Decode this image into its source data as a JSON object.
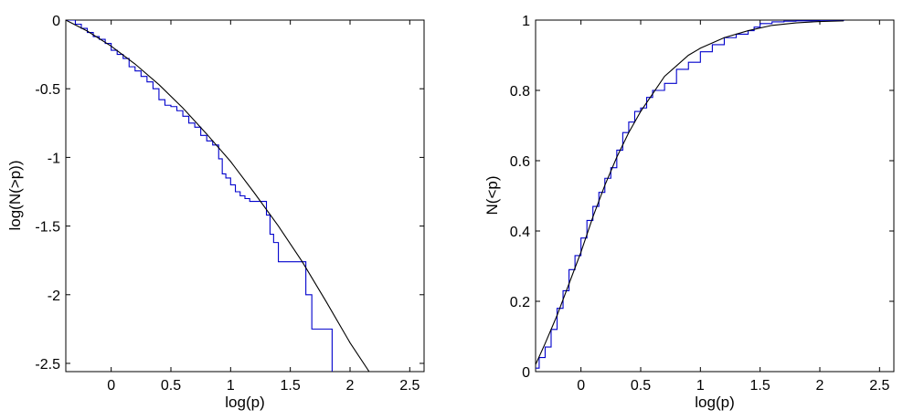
{
  "chart_data": [
    {
      "type": "line",
      "xlabel": "log(p)",
      "ylabel": "log(N(>p))",
      "xlim": [
        -0.38,
        2.62
      ],
      "ylim": [
        -2.56,
        0
      ],
      "xticks": [
        0,
        0.5,
        1,
        1.5,
        2,
        2.5
      ],
      "xtick_labels": [
        "0",
        "0.5",
        "1",
        "1.5",
        "2",
        "2.5"
      ],
      "yticks": [
        -2.5,
        -2,
        -1.5,
        -1,
        -0.5,
        0
      ],
      "ytick_labels": [
        "-2.5",
        "-2",
        "-1.5",
        "-1",
        "-0.5",
        "0"
      ],
      "grid": false,
      "series": [
        {
          "color": "#0000cc",
          "style": "step",
          "x": [
            -0.38,
            -0.3,
            -0.25,
            -0.2,
            -0.15,
            -0.1,
            -0.05,
            0.0,
            0.05,
            0.1,
            0.15,
            0.2,
            0.25,
            0.3,
            0.35,
            0.4,
            0.45,
            0.5,
            0.55,
            0.6,
            0.65,
            0.7,
            0.75,
            0.8,
            0.85,
            0.9,
            0.93,
            0.96,
            1.0,
            1.04,
            1.08,
            1.12,
            1.16,
            1.2,
            1.25,
            1.3,
            1.33,
            1.36,
            1.4,
            1.5,
            1.58,
            1.63,
            1.68,
            1.78,
            1.85,
            1.85
          ],
          "y": [
            0.0,
            -0.03,
            -0.06,
            -0.09,
            -0.12,
            -0.14,
            -0.17,
            -0.22,
            -0.25,
            -0.28,
            -0.34,
            -0.37,
            -0.41,
            -0.45,
            -0.5,
            -0.58,
            -0.62,
            -0.63,
            -0.66,
            -0.7,
            -0.75,
            -0.78,
            -0.84,
            -0.88,
            -0.91,
            -1.01,
            -1.12,
            -1.15,
            -1.2,
            -1.25,
            -1.28,
            -1.3,
            -1.32,
            -1.32,
            -1.32,
            -1.42,
            -1.56,
            -1.62,
            -1.76,
            -1.76,
            -1.76,
            -2.0,
            -2.25,
            -2.25,
            -2.25,
            -2.56
          ]
        },
        {
          "color": "#000000",
          "style": "line",
          "x": [
            -0.38,
            -0.2,
            0.0,
            0.2,
            0.4,
            0.6,
            0.8,
            1.0,
            1.2,
            1.4,
            1.6,
            1.8,
            2.0,
            2.16
          ],
          "y": [
            0.0,
            -0.08,
            -0.19,
            -0.32,
            -0.47,
            -0.64,
            -0.83,
            -1.03,
            -1.26,
            -1.5,
            -1.76,
            -2.05,
            -2.35,
            -2.56
          ]
        }
      ]
    },
    {
      "type": "line",
      "xlabel": "log(p)",
      "ylabel": "N(<p)",
      "xlim": [
        -0.38,
        2.62
      ],
      "ylim": [
        0,
        1
      ],
      "xticks": [
        0,
        0.5,
        1,
        1.5,
        2,
        2.5
      ],
      "xtick_labels": [
        "0",
        "0.5",
        "1",
        "1.5",
        "2",
        "2.5"
      ],
      "yticks": [
        0,
        0.2,
        0.4,
        0.6,
        0.8,
        1
      ],
      "ytick_labels": [
        "0",
        "0.2",
        "0.4",
        "0.6",
        "0.8",
        "1"
      ],
      "grid": false,
      "series": [
        {
          "color": "#0000cc",
          "style": "step",
          "x": [
            -0.38,
            -0.35,
            -0.3,
            -0.25,
            -0.2,
            -0.15,
            -0.1,
            -0.05,
            0.0,
            0.05,
            0.1,
            0.15,
            0.2,
            0.25,
            0.3,
            0.35,
            0.4,
            0.45,
            0.5,
            0.55,
            0.6,
            0.7,
            0.8,
            0.9,
            1.0,
            1.1,
            1.2,
            1.3,
            1.4,
            1.45,
            1.5,
            1.6,
            1.7,
            1.8,
            2.0,
            2.2
          ],
          "y": [
            0.01,
            0.04,
            0.07,
            0.12,
            0.18,
            0.23,
            0.29,
            0.33,
            0.38,
            0.43,
            0.47,
            0.51,
            0.55,
            0.58,
            0.63,
            0.68,
            0.71,
            0.74,
            0.75,
            0.78,
            0.8,
            0.82,
            0.86,
            0.88,
            0.91,
            0.93,
            0.95,
            0.96,
            0.97,
            0.98,
            0.99,
            0.995,
            0.997,
            0.998,
            0.999,
            1.0
          ]
        },
        {
          "color": "#000000",
          "style": "line",
          "x": [
            -0.38,
            -0.3,
            -0.2,
            -0.1,
            0.0,
            0.1,
            0.2,
            0.3,
            0.4,
            0.5,
            0.6,
            0.7,
            0.8,
            0.9,
            1.0,
            1.2,
            1.4,
            1.6,
            1.8,
            2.0,
            2.2
          ],
          "y": [
            0.02,
            0.08,
            0.16,
            0.25,
            0.34,
            0.44,
            0.53,
            0.61,
            0.68,
            0.74,
            0.79,
            0.84,
            0.87,
            0.9,
            0.92,
            0.95,
            0.97,
            0.985,
            0.992,
            0.996,
            0.998
          ]
        }
      ]
    }
  ]
}
